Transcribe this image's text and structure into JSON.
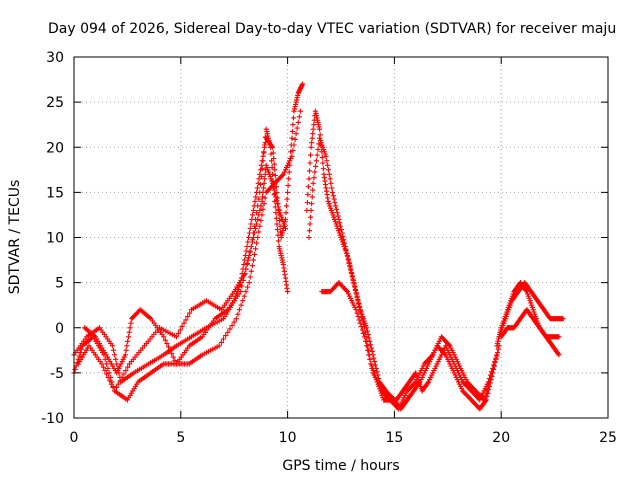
{
  "chart_data": {
    "type": "scatter",
    "title": "Day 094 of 2026, Sidereal Day-to-day VTEC variation (SDTVAR) for receiver maju",
    "xlabel": "GPS time / hours",
    "ylabel": "SDTVAR / TECUs",
    "xlim": [
      0,
      25
    ],
    "ylim": [
      -10,
      30
    ],
    "xticks": [
      "0",
      "5",
      "10",
      "15",
      "20",
      "25"
    ],
    "yticks": [
      "-10",
      "-5",
      "0",
      "5",
      "10",
      "15",
      "20",
      "25",
      "30"
    ],
    "grid": true,
    "marker": "plus",
    "color": "#ff0000",
    "series": [
      {
        "name": "trace-1",
        "x": [
          0.0,
          0.6,
          1.2,
          1.8,
          2.2,
          2.8,
          3.5,
          4.2,
          4.8,
          5.5,
          6.2,
          7.0,
          7.5,
          7.8,
          8.1,
          8.4,
          8.7,
          9.0,
          9.3,
          9.5,
          9.7,
          9.9,
          10.1,
          10.3,
          10.5,
          10.7
        ],
        "y": [
          -3,
          -1,
          0,
          -2,
          -6,
          -5,
          -4,
          -3,
          -2,
          -1,
          0,
          1,
          3,
          5,
          9,
          13,
          17,
          21,
          20,
          15,
          10,
          12,
          18,
          24,
          26,
          27
        ]
      },
      {
        "name": "trace-2",
        "x": [
          0.0,
          0.4,
          0.9,
          1.4,
          1.9,
          2.5,
          3.0,
          3.6,
          4.2,
          4.8,
          5.4,
          6.0,
          6.6,
          7.2,
          7.8,
          8.3,
          8.7,
          9.0,
          9.2,
          9.4,
          9.6,
          9.8,
          10.0
        ],
        "y": [
          -5,
          -2,
          -1,
          -3,
          -7,
          -8,
          -6,
          -5,
          -4,
          -4,
          -2,
          -1,
          1,
          2,
          4,
          9,
          15,
          22,
          20,
          14,
          9,
          7,
          4
        ]
      },
      {
        "name": "trace-3",
        "x": [
          0.2,
          0.7,
          1.3,
          1.9,
          2.6,
          3.3,
          4.0,
          4.8,
          5.5,
          6.2,
          6.9,
          7.5,
          8.0,
          8.4,
          8.8,
          9.0,
          9.3,
          9.6,
          9.9
        ],
        "y": [
          -4,
          -2,
          -4,
          -7,
          -4,
          -2,
          0,
          -1,
          2,
          3,
          2,
          4,
          6,
          10,
          14,
          18,
          16,
          13,
          11
        ]
      },
      {
        "name": "trace-4",
        "x": [
          0.5,
          1.0,
          1.5,
          2.0,
          2.4,
          2.7,
          3.1,
          3.6,
          4.2,
          4.8,
          5.4,
          6.0,
          6.8,
          7.6,
          8.2,
          8.6,
          9.0,
          9.4,
          9.8,
          10.2,
          10.6
        ],
        "y": [
          0,
          -1,
          -3,
          -5,
          -3,
          1,
          2,
          1,
          -1,
          -4,
          -4,
          -3,
          -2,
          1,
          5,
          10,
          15,
          16,
          17,
          19,
          24
        ]
      },
      {
        "name": "trace-5",
        "x": [
          10.9,
          11.1,
          11.3,
          11.5,
          11.7,
          11.9,
          12.2,
          12.5,
          12.8,
          13.1,
          13.4,
          13.7,
          14.0,
          14.3,
          14.6,
          15.0,
          15.3,
          15.6,
          15.9,
          16.2,
          16.6,
          17.0,
          17.4,
          17.8,
          18.2,
          18.6,
          19.0,
          19.3,
          19.6,
          19.9
        ],
        "y": [
          13,
          20,
          24,
          22,
          17,
          14,
          12,
          10,
          8,
          5,
          2,
          0,
          -3,
          -6,
          -7,
          -8,
          -9,
          -8,
          -7,
          -6,
          -4,
          -2,
          -3,
          -5,
          -7,
          -8,
          -9,
          -8,
          -5,
          -2
        ]
      },
      {
        "name": "trace-6",
        "x": [
          11.0,
          11.2,
          11.5,
          11.8,
          12.1,
          12.4,
          12.7,
          13.0,
          13.3,
          13.6,
          13.9,
          14.2,
          14.5,
          14.8,
          15.1,
          15.4,
          15.7,
          16.0,
          16.3,
          16.6,
          17.0,
          17.4,
          17.8,
          18.2,
          18.6,
          19.0,
          19.4,
          19.8
        ],
        "y": [
          10,
          16,
          21,
          19,
          15,
          12,
          9,
          6,
          3,
          0,
          -4,
          -6,
          -8,
          -8,
          -8,
          -7,
          -6,
          -5,
          -7,
          -6,
          -4,
          -2,
          -4,
          -6,
          -7,
          -8,
          -6,
          -3
        ]
      },
      {
        "name": "trace-7",
        "x": [
          11.6,
          12.0,
          12.4,
          12.8,
          13.2,
          13.6,
          14.0,
          14.4,
          14.8,
          15.2,
          15.6,
          16.0,
          16.4,
          16.8,
          17.2,
          17.6,
          18.0,
          18.4,
          18.8,
          19.2,
          19.6
        ],
        "y": [
          4,
          4,
          5,
          4,
          2,
          -1,
          -5,
          -7,
          -8,
          -9,
          -7,
          -6,
          -4,
          -3,
          -1,
          -2,
          -4,
          -6,
          -7,
          -8,
          -5
        ]
      },
      {
        "name": "trace-8",
        "x": [
          19.8,
          20.0,
          20.3,
          20.6,
          20.9,
          21.2,
          21.5,
          21.8,
          22.1,
          22.4,
          22.7
        ],
        "y": [
          -2,
          0,
          2,
          4,
          5,
          4,
          2,
          0,
          -1,
          -2,
          -3
        ]
      },
      {
        "name": "trace-9",
        "x": [
          19.9,
          20.2,
          20.5,
          20.8,
          21.1,
          21.4,
          21.7,
          22.0,
          22.3,
          22.6,
          22.9
        ],
        "y": [
          -1,
          1,
          3,
          4,
          5,
          4,
          3,
          2,
          1,
          1,
          1
        ]
      },
      {
        "name": "trace-10",
        "x": [
          20.0,
          20.3,
          20.6,
          20.9,
          21.2,
          21.5,
          21.8,
          22.1,
          22.4,
          22.7
        ],
        "y": [
          -1,
          0,
          0,
          1,
          2,
          1,
          0,
          -1,
          -1,
          -1
        ]
      }
    ]
  }
}
